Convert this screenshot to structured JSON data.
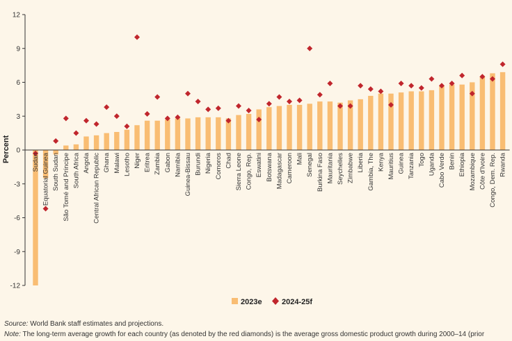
{
  "chart_data": {
    "type": "bar",
    "ylabel": "Percent",
    "ylim": [
      -12,
      12
    ],
    "yticks": [
      -12,
      -9,
      -6,
      -3,
      0,
      3,
      6,
      9,
      12
    ],
    "grid": false,
    "legend_position": "bottom",
    "categories": [
      "Sudan",
      "Equatorial Guinea",
      "South Sudan",
      "São Tomé and Príncipe",
      "South Africa",
      "Angola",
      "Central African Republic",
      "Ghana",
      "Malawi",
      "Lesotho",
      "Niger",
      "Eritrea",
      "Zambia",
      "Gabon",
      "Namibia",
      "Guinea-Bissau",
      "Burundi",
      "Nigeria",
      "Comoros",
      "Chad",
      "Sierra Leone",
      "Congo, Rep.",
      "Eswatini",
      "Botswana",
      "Madagascar",
      "Cameroon",
      "Mali",
      "Senegal",
      "Burkina Faso",
      "Mauritania",
      "Seychelles",
      "Zimbabwe",
      "Liberia",
      "Gambia, The",
      "Kenya",
      "Mauritius",
      "Guinea",
      "Tanzania",
      "Togo",
      "Uganda",
      "Cabo Verde",
      "Benin",
      "Ethiopia",
      "Mozambique",
      "Côte d'Ivoire",
      "Congo, Dem. Rep.",
      "Rwanda"
    ],
    "series": [
      {
        "name": "2023e",
        "type": "bar",
        "color": "#f9bd73",
        "values": [
          -12.0,
          -2.5,
          -0.4,
          0.4,
          0.5,
          1.2,
          1.3,
          1.5,
          1.6,
          1.8,
          2.2,
          2.6,
          2.6,
          2.7,
          2.8,
          2.8,
          2.9,
          2.9,
          2.9,
          2.8,
          3.1,
          3.2,
          3.6,
          3.8,
          3.9,
          4.0,
          4.0,
          4.1,
          4.3,
          4.3,
          4.2,
          4.4,
          4.5,
          4.8,
          5.0,
          5.0,
          5.1,
          5.2,
          5.2,
          5.3,
          5.7,
          5.8,
          5.8,
          6.0,
          6.5,
          6.8,
          6.9
        ]
      },
      {
        "name": "2024-25f",
        "type": "diamond",
        "color": "#c0262d",
        "values": [
          -0.3,
          -5.2,
          0.8,
          2.8,
          1.5,
          2.6,
          2.3,
          3.8,
          3.0,
          2.1,
          10.0,
          3.2,
          4.7,
          2.8,
          2.9,
          5.0,
          4.3,
          3.6,
          3.7,
          2.6,
          3.9,
          3.5,
          2.7,
          4.1,
          4.7,
          4.3,
          4.4,
          9.0,
          4.9,
          5.9,
          3.9,
          3.9,
          5.7,
          5.4,
          5.2,
          4.0,
          5.9,
          5.7,
          5.5,
          6.3,
          5.7,
          5.9,
          6.6,
          5.0,
          6.5,
          6.3,
          7.6
        ]
      }
    ]
  },
  "y_axis_title": "Percent",
  "legend": [
    {
      "label": "2023e",
      "swatch": "bar",
      "color": "#f9bd73"
    },
    {
      "label": "2024-25f",
      "swatch": "diamond",
      "color": "#c0262d"
    }
  ],
  "footnotes": {
    "source_label": "Source:",
    "source_text": " World Bank staff estimates and projections.",
    "note_label": "Note:",
    "note_text": " The long-term average growth for each country (as denoted by the red diamonds) is the average gross domestic product growth during 2000–14 (prior"
  }
}
